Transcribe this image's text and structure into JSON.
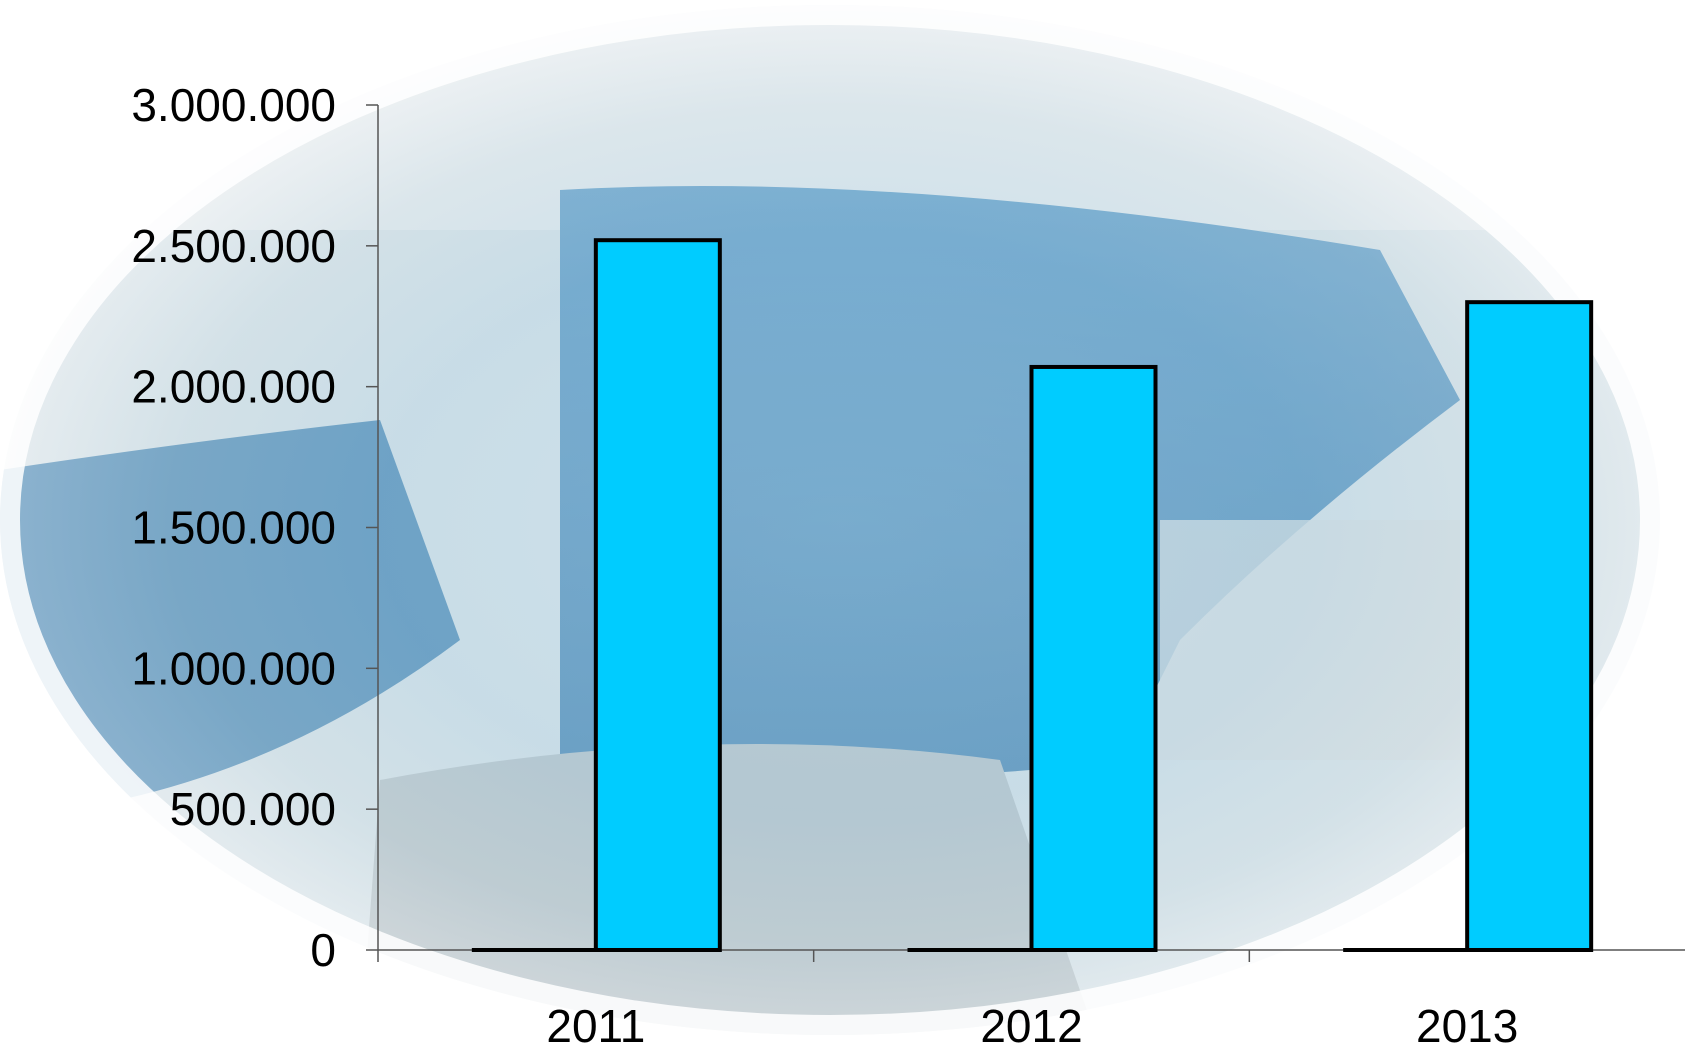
{
  "chart_data": {
    "type": "bar",
    "title": "",
    "xlabel": "",
    "ylabel": "",
    "categories": [
      "2011",
      "2012",
      "2013"
    ],
    "series": [
      {
        "values": [
          0,
          0,
          0
        ]
      },
      {
        "values": [
          2520000,
          2070000,
          2300000
        ]
      }
    ],
    "ylim": [
      0,
      3000000
    ],
    "yticks": [
      0,
      500000,
      1000000,
      1500000,
      2000000,
      2500000,
      3000000
    ],
    "ytick_labels": [
      "0",
      "500.000",
      "1.000.000",
      "1.500.000",
      "2.000.000",
      "2.500.000",
      "3.000.000"
    ],
    "bar_color": "#00CCFF",
    "bar_outline": "#000000",
    "background": "aerial photo of a harbour in an oval vignette",
    "grid": false,
    "legend": "none"
  }
}
